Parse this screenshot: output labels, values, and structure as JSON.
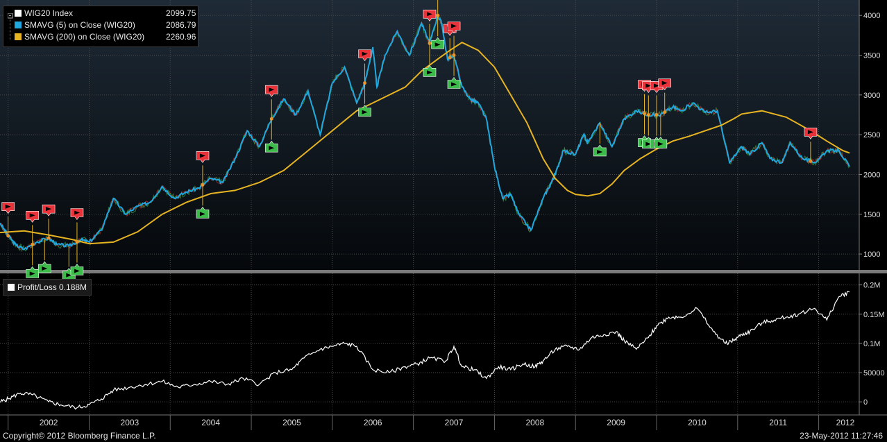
{
  "legend": {
    "index_label": "WIG20 Index",
    "index_value": "2099.75",
    "sma5_label": "SMAVG (5) on Close (WIG20)",
    "sma5_value": "2086.79",
    "sma200_label": "SMAVG (200) on Close (WIG20)",
    "sma200_value": "2260.96"
  },
  "pl_label": "Profit/Loss 0.188M",
  "footer": {
    "copyright": "Copyright© 2012 Bloomberg Finance L.P.",
    "timestamp": "23-May-2012 11:27:46"
  },
  "colors": {
    "price": "#2ab0e8",
    "sma5": "#1fa8e0",
    "sma200": "#e6b422",
    "sell": "#e8333a",
    "buy": "#3dbb4a",
    "pl": "#ffffff",
    "grid": "#4a4a4a"
  },
  "chart_data": [
    {
      "type": "line",
      "title": "WIG20 Index",
      "ylim": [
        800,
        4150
      ],
      "y_ticks": [
        "1000",
        "1500",
        "2000",
        "2500",
        "3000",
        "3500",
        "4000"
      ],
      "x_ticks": [
        "2002",
        "2003",
        "2004",
        "2005",
        "2006",
        "2007",
        "2008",
        "2009",
        "2010",
        "2011",
        "2012"
      ],
      "xlim": [
        2001.9,
        2012.5
      ],
      "series": [
        {
          "name": "WIG20 Index",
          "x": [
            2001.9,
            2002.0,
            2002.1,
            2002.2,
            2002.35,
            2002.5,
            2002.6,
            2002.75,
            2002.9,
            2003.0,
            2003.15,
            2003.3,
            2003.45,
            2003.6,
            2003.75,
            2003.9,
            2004.05,
            2004.2,
            2004.35,
            2004.5,
            2004.65,
            2004.8,
            2004.95,
            2005.1,
            2005.25,
            2005.4,
            2005.55,
            2005.7,
            2005.85,
            2006.0,
            2006.15,
            2006.3,
            2006.4,
            2006.5,
            2006.55,
            2006.65,
            2006.8,
            2006.95,
            2007.1,
            2007.2,
            2007.3,
            2007.35,
            2007.42,
            2007.5,
            2007.6,
            2007.7,
            2007.8,
            2007.9,
            2008.0,
            2008.1,
            2008.2,
            2008.3,
            2008.45,
            2008.6,
            2008.7,
            2008.75,
            2008.85,
            2009.0,
            2009.1,
            2009.15,
            2009.3,
            2009.45,
            2009.6,
            2009.75,
            2009.9,
            2010.05,
            2010.2,
            2010.3,
            2010.45,
            2010.6,
            2010.75,
            2010.9,
            2011.05,
            2011.15,
            2011.3,
            2011.4,
            2011.55,
            2011.65,
            2011.8,
            2011.95,
            2012.1,
            2012.25,
            2012.38
          ],
          "values": [
            1390,
            1230,
            1110,
            1060,
            1150,
            1200,
            1120,
            1100,
            1180,
            1150,
            1300,
            1700,
            1500,
            1600,
            1650,
            1850,
            1700,
            1780,
            1830,
            1950,
            1900,
            2200,
            2550,
            2350,
            2700,
            2950,
            2750,
            3050,
            2500,
            3150,
            3350,
            2900,
            3150,
            3600,
            3100,
            3500,
            3800,
            3500,
            3900,
            3650,
            4000,
            3900,
            3450,
            3500,
            3100,
            2950,
            2900,
            2700,
            2100,
            1700,
            1750,
            1500,
            1300,
            1700,
            1900,
            2000,
            2300,
            2250,
            2500,
            2400,
            2650,
            2350,
            2700,
            2800,
            2750,
            2750,
            2850,
            2800,
            2900,
            2780,
            2800,
            2150,
            2350,
            2250,
            2400,
            2200,
            2150,
            2400,
            2200,
            2150,
            2300,
            2300,
            2100
          ]
        },
        {
          "name": "SMAVG (200) on Close (WIG20)",
          "x": [
            2001.9,
            2002.2,
            2002.5,
            2002.8,
            2003.0,
            2003.3,
            2003.6,
            2003.9,
            2004.2,
            2004.5,
            2004.8,
            2005.1,
            2005.4,
            2005.7,
            2006.0,
            2006.3,
            2006.6,
            2006.9,
            2007.1,
            2007.3,
            2007.45,
            2007.6,
            2007.8,
            2008.0,
            2008.2,
            2008.4,
            2008.6,
            2008.75,
            2008.9,
            2009.0,
            2009.15,
            2009.3,
            2009.45,
            2009.6,
            2009.8,
            2010.0,
            2010.2,
            2010.4,
            2010.6,
            2010.8,
            2010.95,
            2011.05,
            2011.3,
            2011.6,
            2011.9,
            2012.1,
            2012.3,
            2012.38
          ],
          "values": [
            1270,
            1290,
            1240,
            1180,
            1130,
            1150,
            1280,
            1500,
            1650,
            1760,
            1800,
            1900,
            2050,
            2300,
            2550,
            2800,
            2950,
            3100,
            3300,
            3450,
            3560,
            3660,
            3560,
            3350,
            3000,
            2650,
            2200,
            1950,
            1800,
            1750,
            1730,
            1760,
            1880,
            2050,
            2200,
            2320,
            2420,
            2480,
            2550,
            2620,
            2700,
            2760,
            2800,
            2720,
            2550,
            2420,
            2300,
            2270
          ]
        }
      ],
      "sell_signals": [
        2002.0,
        2002.3,
        2002.5,
        2002.85,
        2004.4,
        2005.25,
        2006.4,
        2007.2,
        2007.3,
        2007.45,
        2007.5,
        2009.85,
        2009.9,
        2010.0,
        2010.1,
        2011.9
      ],
      "buy_signals": [
        2002.3,
        2002.45,
        2002.75,
        2002.85,
        2004.4,
        2005.25,
        2006.4,
        2007.2,
        2007.3,
        2007.5,
        2009.3,
        2009.85,
        2009.9,
        2010.0,
        2010.05
      ]
    },
    {
      "type": "line",
      "title": "Profit/Loss 0.188M",
      "ylim": [
        -20000,
        215000
      ],
      "y_ticks": [
        "0",
        "50000",
        "0.1M",
        "0.15M",
        "0.2M"
      ],
      "xlim": [
        2001.9,
        2012.5
      ],
      "series": [
        {
          "name": "Profit/Loss",
          "x": [
            2001.9,
            2002.0,
            2002.15,
            2002.3,
            2002.5,
            2002.65,
            2002.85,
            2003.0,
            2003.15,
            2003.3,
            2003.5,
            2003.7,
            2003.9,
            2004.1,
            2004.3,
            2004.5,
            2004.7,
            2004.9,
            2005.1,
            2005.3,
            2005.5,
            2005.65,
            2005.85,
            2006.0,
            2006.15,
            2006.3,
            2006.5,
            2006.7,
            2006.9,
            2007.05,
            2007.2,
            2007.4,
            2007.5,
            2007.6,
            2007.75,
            2007.9,
            2008.05,
            2008.2,
            2008.35,
            2008.5,
            2008.6,
            2008.75,
            2008.9,
            2009.05,
            2009.2,
            2009.35,
            2009.5,
            2009.6,
            2009.75,
            2009.9,
            2010.0,
            2010.15,
            2010.3,
            2010.5,
            2010.7,
            2010.85,
            2010.95,
            2011.05,
            2011.15,
            2011.3,
            2011.45,
            2011.6,
            2011.75,
            2011.95,
            2012.1,
            2012.25,
            2012.38
          ],
          "values": [
            0,
            5000,
            15000,
            12000,
            0,
            -5000,
            -10000,
            -5000,
            5000,
            20000,
            25000,
            30000,
            35000,
            25000,
            30000,
            35000,
            30000,
            40000,
            30000,
            50000,
            55000,
            75000,
            90000,
            95000,
            100000,
            95000,
            55000,
            50000,
            60000,
            65000,
            75000,
            70000,
            95000,
            60000,
            55000,
            40000,
            60000,
            55000,
            65000,
            60000,
            70000,
            90000,
            95000,
            90000,
            110000,
            115000,
            120000,
            105000,
            90000,
            110000,
            130000,
            145000,
            145000,
            160000,
            120000,
            100000,
            105000,
            115000,
            120000,
            135000,
            140000,
            145000,
            150000,
            160000,
            140000,
            180000,
            188000
          ]
        }
      ]
    }
  ]
}
